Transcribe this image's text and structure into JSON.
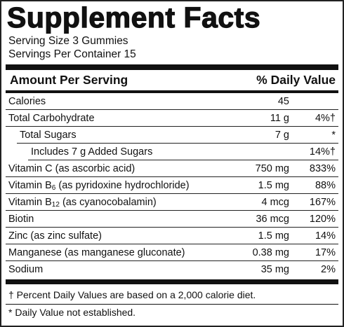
{
  "title": "Supplement Facts",
  "serving_size": "Serving Size 3 Gummies",
  "servings_per_container": "Servings Per Container 15",
  "header": {
    "amount": "Amount Per Serving",
    "daily_value": "% Daily Value"
  },
  "rows": [
    {
      "name": "Calories",
      "amount": "45"
    },
    {
      "name": "Total Carbohydrate",
      "amount": "11 g",
      "daily_value": "4%†",
      "children": [
        {
          "name": "Total Sugars",
          "amount": "7 g",
          "daily_value": "*",
          "children": [
            {
              "name": "Includes 7 g Added Sugars",
              "daily_value": "14%†"
            }
          ]
        }
      ]
    },
    {
      "name": "Vitamin C (as ascorbic acid)",
      "amount": "750 mg",
      "daily_value": "833%"
    },
    {
      "name": "Vitamin B",
      "sub": "6",
      "note": "(as pyridoxine hydrochloride)",
      "amount": "1.5 mg",
      "daily_value": "88%"
    },
    {
      "name": "Vitamin B",
      "sub": "12",
      "note": "(as cyanocobalamin)",
      "amount": "4 mcg",
      "daily_value": "167%"
    },
    {
      "name": "Biotin",
      "amount": "36 mcg",
      "daily_value": "120%"
    },
    {
      "name": "Zinc (as zinc sulfate)",
      "amount": "1.5 mg",
      "daily_value": "14%"
    },
    {
      "name": "Manganese (as manganese gluconate)",
      "amount": "0.38 mg",
      "daily_value": "17%"
    },
    {
      "name": "Sodium",
      "amount": "35 mg",
      "daily_value": "2%"
    }
  ],
  "footnotes": [
    "† Percent Daily Values are based on a 2,000 calorie diet.",
    "* Daily Value not established."
  ]
}
